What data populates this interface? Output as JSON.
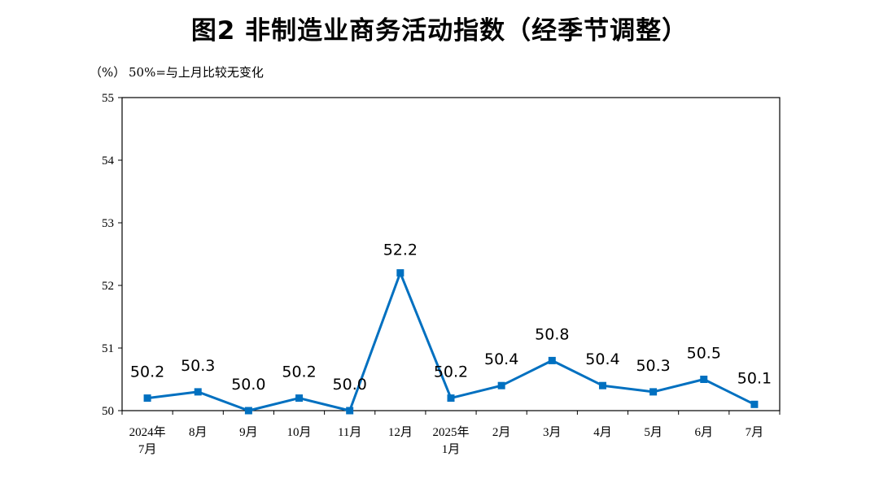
{
  "title": "图2  非制造业商务活动指数（经季节调整）",
  "unit": "（%）",
  "note": "50%=与上月比较无变化",
  "chart_data": {
    "type": "line",
    "categories": [
      "2024年\n7月",
      "8月",
      "9月",
      "10月",
      "11月",
      "12月",
      "2025年\n1月",
      "2月",
      "3月",
      "4月",
      "5月",
      "6月",
      "7月"
    ],
    "series": [
      {
        "values": [
          50.2,
          50.3,
          50.0,
          50.2,
          50.0,
          52.2,
          50.2,
          50.4,
          50.8,
          50.4,
          50.3,
          50.5,
          50.1
        ]
      }
    ],
    "data_labels": [
      "50.2",
      "50.3",
      "50.0",
      "50.2",
      "50.0",
      "52.2",
      "50.2",
      "50.4",
      "50.8",
      "50.4",
      "50.3",
      "50.5",
      "50.1"
    ],
    "yticks": [
      "50",
      "51",
      "52",
      "53",
      "54",
      "55"
    ],
    "ylim": [
      50,
      55
    ],
    "grid": false,
    "line_color": "#0070C0"
  }
}
